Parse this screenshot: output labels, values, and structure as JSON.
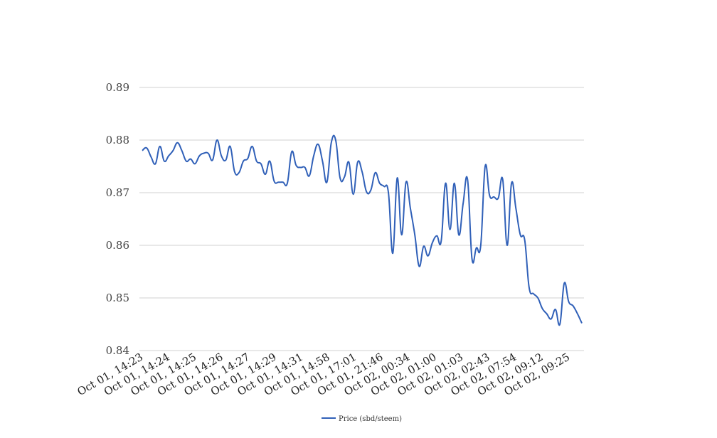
{
  "chart_data": {
    "type": "line",
    "title": "",
    "xlabel": "",
    "ylabel": "",
    "ylim": [
      0.84,
      0.89
    ],
    "yticks": [
      "0.84",
      "0.85",
      "0.86",
      "0.87",
      "0.88",
      "0.89"
    ],
    "xtick_labels": [
      "Oct 01, 14:23",
      "Oct 01, 14:24",
      "Oct 01, 14:25",
      "Oct 01, 14:26",
      "Oct 01, 14:27",
      "Oct 01, 14:29",
      "Oct 01, 14:31",
      "Oct 01, 14:58",
      "Oct 01, 17:01",
      "Oct 01, 21:46",
      "Oct 02, 00:34",
      "Oct 02, 01:00",
      "Oct 02, 01:03",
      "Oct 02, 02:43",
      "Oct 02, 07:54",
      "Oct 02, 09:12",
      "Oct 02, 09:25"
    ],
    "grid": true,
    "legend_position": "bottom",
    "series": [
      {
        "name": "Price (sbd/steem)",
        "color": "#3060b8",
        "values": [
          0.878,
          0.8785,
          0.8768,
          0.8755,
          0.8788,
          0.876,
          0.877,
          0.878,
          0.8795,
          0.878,
          0.876,
          0.8764,
          0.8755,
          0.877,
          0.8775,
          0.8775,
          0.8762,
          0.88,
          0.877,
          0.8762,
          0.8788,
          0.874,
          0.8738,
          0.876,
          0.8765,
          0.8788,
          0.876,
          0.8755,
          0.8735,
          0.876,
          0.8722,
          0.872,
          0.872,
          0.8718,
          0.8778,
          0.8752,
          0.8748,
          0.8748,
          0.8732,
          0.877,
          0.8792,
          0.876,
          0.872,
          0.8795,
          0.88,
          0.8728,
          0.873,
          0.8758,
          0.8697,
          0.8758,
          0.874,
          0.8702,
          0.8705,
          0.8738,
          0.8718,
          0.8712,
          0.87,
          0.8585,
          0.8728,
          0.862,
          0.872,
          0.867,
          0.862,
          0.856,
          0.8598,
          0.858,
          0.8605,
          0.8618,
          0.8608,
          0.8718,
          0.863,
          0.8718,
          0.862,
          0.868,
          0.8725,
          0.8575,
          0.8595,
          0.86,
          0.875,
          0.8695,
          0.8692,
          0.869,
          0.8725,
          0.86,
          0.8718,
          0.867,
          0.862,
          0.861,
          0.852,
          0.8508,
          0.85,
          0.848,
          0.847,
          0.846,
          0.8478,
          0.845,
          0.8528,
          0.8493,
          0.8485,
          0.847,
          0.8452
        ]
      }
    ]
  }
}
